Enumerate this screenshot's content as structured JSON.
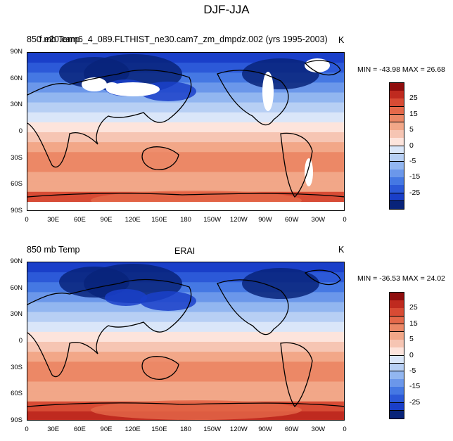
{
  "figure_title": "DJF-JJA",
  "colors": {
    "palette": [
      "#08237a",
      "#1a3fc9",
      "#2c59d8",
      "#4578e3",
      "#6b97ea",
      "#92b6f0",
      "#b7cff4",
      "#dae6f9",
      "#fde4dc",
      "#f6c5b3",
      "#f2a788",
      "#ec8866",
      "#e5694a",
      "#d84b34",
      "#bf2a1f",
      "#8f0d0d"
    ],
    "land_missing": "#ffffff"
  },
  "colorbar": {
    "labels": [
      "25",
      "15",
      "5",
      "0",
      "-5",
      "-15",
      "-25"
    ]
  },
  "panels": [
    {
      "left_title": "850 mb Temp",
      "center_title": "f.e20.cam6_4_089.FLTHIST_ne30.cam7_zm_dmpdz.002 (yrs 1995-2003)",
      "units": "K",
      "minmax": "MIN = -43.98 MAX =  26.68",
      "lat_labels": [
        "90N",
        "60N",
        "30N",
        "0",
        "30S",
        "60S",
        "90S"
      ],
      "lon_labels": [
        "0",
        "30E",
        "60E",
        "90E",
        "120E",
        "150E",
        "180",
        "150W",
        "120W",
        "90W",
        "60W",
        "30W",
        "0"
      ]
    },
    {
      "left_title": "850 mb Temp",
      "center_title": "ERAI",
      "units": "K",
      "minmax": "MIN = -36.53 MAX =  24.02",
      "lat_labels": [
        "90N",
        "60N",
        "30N",
        "0",
        "30S",
        "60S",
        "90S"
      ],
      "lon_labels": [
        "0",
        "30E",
        "60E",
        "90E",
        "120E",
        "150E",
        "180",
        "150W",
        "120W",
        "90W",
        "60W",
        "30W",
        "0"
      ]
    }
  ]
}
